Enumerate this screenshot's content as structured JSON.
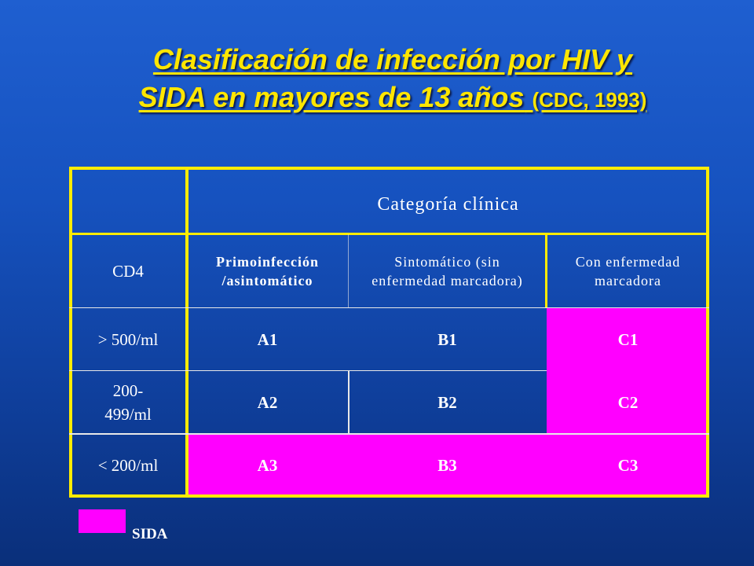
{
  "title": {
    "line1": "Clasificación de infección por  HIV y",
    "line2": "SIDA en mayores de 13 años",
    "note": "(CDC, 1993)"
  },
  "table": {
    "header_span": "Categoría clínica",
    "corner": "",
    "col0": "CD4",
    "col1": "Primoinfección /asintomático",
    "col2": "Sintomático (sin enfermedad marcadora)",
    "col3": "Con enfermedad marcadora",
    "rows": [
      {
        "cd4": "> 500/ml",
        "a": "A1",
        "b": "B1",
        "c": "C1"
      },
      {
        "cd4": "200-499/ml",
        "a": "A2",
        "b": "B2",
        "c": "C2"
      },
      {
        "cd4": "< 200/ml",
        "a": "A3",
        "b": "B3",
        "c": "C3"
      }
    ]
  },
  "legend": {
    "label": "SIDA",
    "color": "#ff00ff"
  },
  "colors": {
    "title": "#ffe600",
    "grid_line": "#ffec00",
    "aids": "#ff00ff"
  }
}
